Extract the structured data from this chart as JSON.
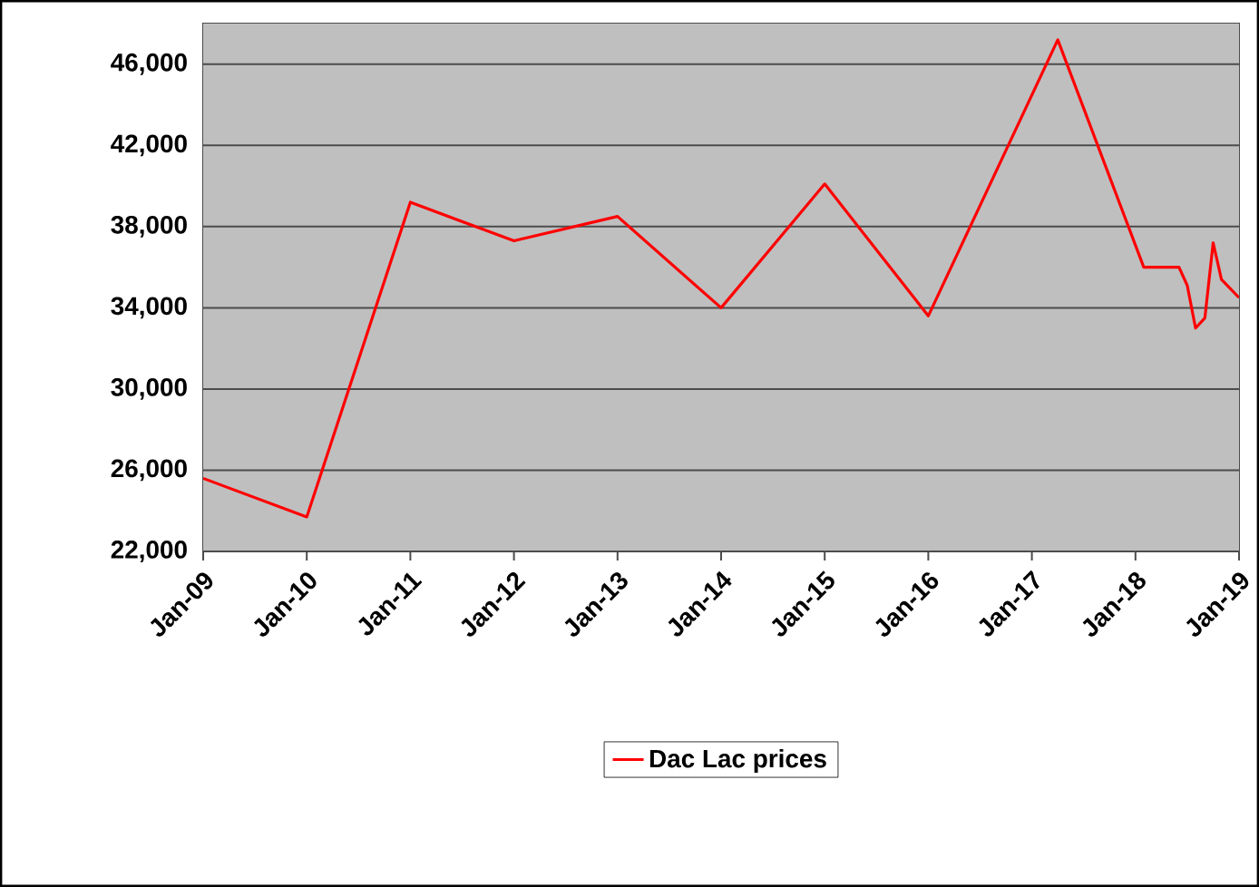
{
  "chart_data": {
    "type": "line",
    "x": [
      "2009-01",
      "2010-01",
      "2011-01",
      "2012-01",
      "2013-01",
      "2014-01",
      "2015-01",
      "2016-01",
      "2017-04",
      "2018-02",
      "2018-06",
      "2018-07",
      "2018-08",
      "2018-09",
      "2018-10",
      "2018-11",
      "2019-01"
    ],
    "series": [
      {
        "name": "Dac Lac prices",
        "color": "#ff0000",
        "values": [
          25600,
          23700,
          39200,
          37300,
          38500,
          34000,
          40100,
          33600,
          47200,
          36000,
          36000,
          35100,
          33000,
          33500,
          37200,
          35400,
          34500
        ]
      }
    ],
    "xlim": [
      "2009-01",
      "2019-01"
    ],
    "xticks": [
      {
        "value": "2009-01",
        "label": "Jan-09"
      },
      {
        "value": "2010-01",
        "label": "Jan-10"
      },
      {
        "value": "2011-01",
        "label": "Jan-11"
      },
      {
        "value": "2012-01",
        "label": "Jan-12"
      },
      {
        "value": "2013-01",
        "label": "Jan-13"
      },
      {
        "value": "2014-01",
        "label": "Jan-14"
      },
      {
        "value": "2015-01",
        "label": "Jan-15"
      },
      {
        "value": "2016-01",
        "label": "Jan-16"
      },
      {
        "value": "2017-01",
        "label": "Jan-17"
      },
      {
        "value": "2018-01",
        "label": "Jan-18"
      },
      {
        "value": "2019-01",
        "label": "Jan-19"
      }
    ],
    "ylim": [
      22000,
      48000
    ],
    "yticks": [
      {
        "value": 22000,
        "label": "22,000"
      },
      {
        "value": 26000,
        "label": "26,000"
      },
      {
        "value": 30000,
        "label": "30,000"
      },
      {
        "value": 34000,
        "label": "34,000"
      },
      {
        "value": 38000,
        "label": "38,000"
      },
      {
        "value": 42000,
        "label": "42,000"
      },
      {
        "value": 46000,
        "label": "46,000"
      }
    ],
    "grid": "y",
    "legend": "bottom",
    "line_style": "solid",
    "marker": "none"
  }
}
